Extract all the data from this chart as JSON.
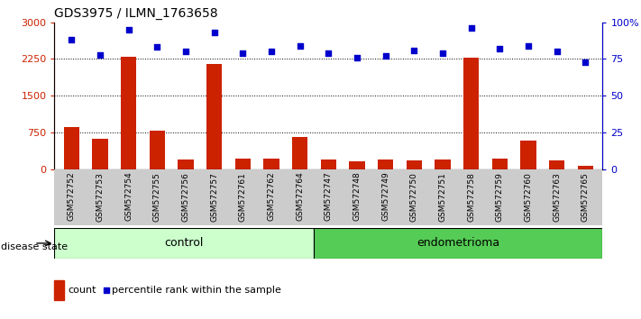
{
  "title": "GDS3975 / ILMN_1763658",
  "samples": [
    "GSM572752",
    "GSM572753",
    "GSM572754",
    "GSM572755",
    "GSM572756",
    "GSM572757",
    "GSM572761",
    "GSM572762",
    "GSM572764",
    "GSM572747",
    "GSM572748",
    "GSM572749",
    "GSM572750",
    "GSM572751",
    "GSM572758",
    "GSM572759",
    "GSM572760",
    "GSM572763",
    "GSM572765"
  ],
  "counts": [
    850,
    620,
    2300,
    780,
    200,
    2150,
    220,
    220,
    650,
    200,
    160,
    200,
    175,
    200,
    2270,
    220,
    590,
    175,
    75
  ],
  "percentiles": [
    88,
    78,
    95,
    83,
    80,
    93,
    79,
    80,
    84,
    79,
    76,
    77,
    81,
    79,
    96,
    82,
    84,
    80,
    73
  ],
  "control_count": 9,
  "endometrioma_count": 10,
  "ylim_left": [
    0,
    3000
  ],
  "ylim_right": [
    0,
    100
  ],
  "yticks_left": [
    0,
    750,
    1500,
    2250,
    3000
  ],
  "yticks_right": [
    0,
    25,
    50,
    75,
    100
  ],
  "ytick_labels_right": [
    "0",
    "25",
    "50",
    "75",
    "100%"
  ],
  "bar_color": "#cc2200",
  "scatter_color": "#0000cc",
  "control_bg": "#ccffcc",
  "endo_bg": "#55cc55",
  "label_bg": "#cccccc",
  "dotted_lines": [
    750,
    1500,
    2250
  ],
  "legend_count_label": "count",
  "legend_pct_label": "percentile rank within the sample",
  "disease_state_label": "disease state",
  "control_label": "control",
  "endo_label": "endometrioma"
}
